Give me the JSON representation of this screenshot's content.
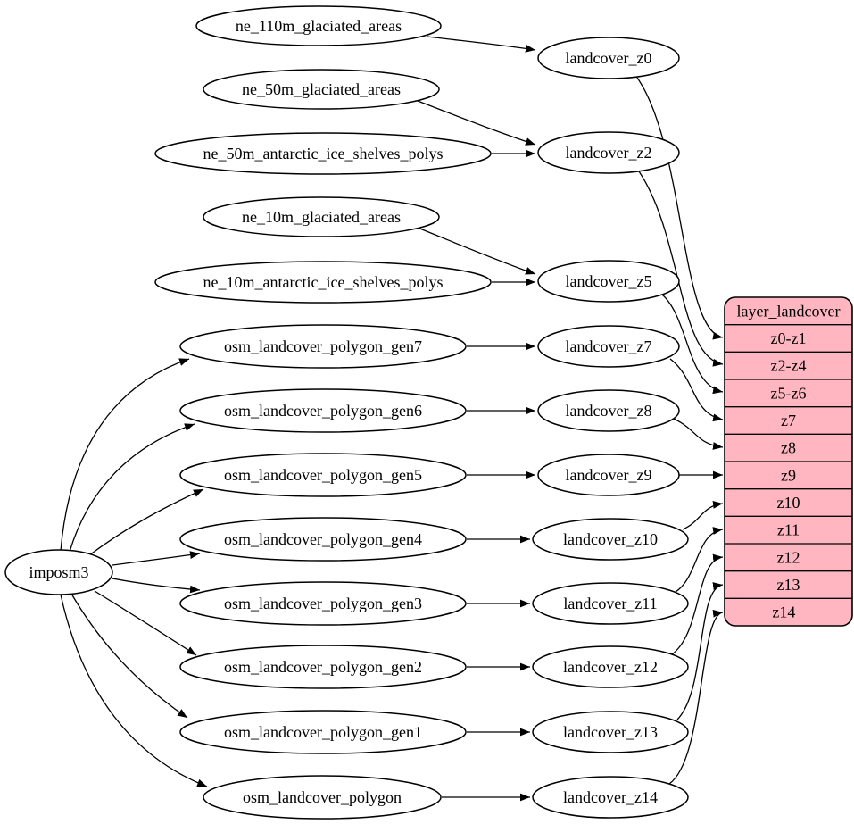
{
  "diagram": {
    "background": "#ffffff",
    "edge_color": "#000000",
    "node_fill": "#ffffff",
    "node_stroke": "#000000",
    "nodes": [
      {
        "id": "imposm3",
        "label": "imposm3"
      },
      {
        "id": "ne_110m_glaciated_areas",
        "label": "ne_110m_glaciated_areas"
      },
      {
        "id": "ne_50m_glaciated_areas",
        "label": "ne_50m_glaciated_areas"
      },
      {
        "id": "ne_50m_antarctic_ice_shelves_polys",
        "label": "ne_50m_antarctic_ice_shelves_polys"
      },
      {
        "id": "ne_10m_glaciated_areas",
        "label": "ne_10m_glaciated_areas"
      },
      {
        "id": "ne_10m_antarctic_ice_shelves_polys",
        "label": "ne_10m_antarctic_ice_shelves_polys"
      },
      {
        "id": "osm_landcover_polygon_gen7",
        "label": "osm_landcover_polygon_gen7"
      },
      {
        "id": "osm_landcover_polygon_gen6",
        "label": "osm_landcover_polygon_gen6"
      },
      {
        "id": "osm_landcover_polygon_gen5",
        "label": "osm_landcover_polygon_gen5"
      },
      {
        "id": "osm_landcover_polygon_gen4",
        "label": "osm_landcover_polygon_gen4"
      },
      {
        "id": "osm_landcover_polygon_gen3",
        "label": "osm_landcover_polygon_gen3"
      },
      {
        "id": "osm_landcover_polygon_gen2",
        "label": "osm_landcover_polygon_gen2"
      },
      {
        "id": "osm_landcover_polygon_gen1",
        "label": "osm_landcover_polygon_gen1"
      },
      {
        "id": "osm_landcover_polygon",
        "label": "osm_landcover_polygon"
      },
      {
        "id": "landcover_z0",
        "label": "landcover_z0"
      },
      {
        "id": "landcover_z2",
        "label": "landcover_z2"
      },
      {
        "id": "landcover_z5",
        "label": "landcover_z5"
      },
      {
        "id": "landcover_z7",
        "label": "landcover_z7"
      },
      {
        "id": "landcover_z8",
        "label": "landcover_z8"
      },
      {
        "id": "landcover_z9",
        "label": "landcover_z9"
      },
      {
        "id": "landcover_z10",
        "label": "landcover_z10"
      },
      {
        "id": "landcover_z11",
        "label": "landcover_z11"
      },
      {
        "id": "landcover_z12",
        "label": "landcover_z12"
      },
      {
        "id": "landcover_z13",
        "label": "landcover_z13"
      },
      {
        "id": "landcover_z14",
        "label": "landcover_z14"
      }
    ],
    "table": {
      "title": "layer_landcover",
      "fill": "#ffb6c1",
      "stroke": "#000000",
      "rows": [
        "z0-z1",
        "z2-z4",
        "z5-z6",
        "z7",
        "z8",
        "z9",
        "z10",
        "z11",
        "z12",
        "z13",
        "z14+"
      ]
    },
    "edges": [
      {
        "from": "imposm3",
        "to": "osm_landcover_polygon_gen7"
      },
      {
        "from": "imposm3",
        "to": "osm_landcover_polygon_gen6"
      },
      {
        "from": "imposm3",
        "to": "osm_landcover_polygon_gen5"
      },
      {
        "from": "imposm3",
        "to": "osm_landcover_polygon_gen4"
      },
      {
        "from": "imposm3",
        "to": "osm_landcover_polygon_gen3"
      },
      {
        "from": "imposm3",
        "to": "osm_landcover_polygon_gen2"
      },
      {
        "from": "imposm3",
        "to": "osm_landcover_polygon_gen1"
      },
      {
        "from": "imposm3",
        "to": "osm_landcover_polygon"
      },
      {
        "from": "ne_110m_glaciated_areas",
        "to": "landcover_z0"
      },
      {
        "from": "ne_50m_glaciated_areas",
        "to": "landcover_z2"
      },
      {
        "from": "ne_50m_antarctic_ice_shelves_polys",
        "to": "landcover_z2"
      },
      {
        "from": "ne_10m_glaciated_areas",
        "to": "landcover_z5"
      },
      {
        "from": "ne_10m_antarctic_ice_shelves_polys",
        "to": "landcover_z5"
      },
      {
        "from": "osm_landcover_polygon_gen7",
        "to": "landcover_z7"
      },
      {
        "from": "osm_landcover_polygon_gen6",
        "to": "landcover_z8"
      },
      {
        "from": "osm_landcover_polygon_gen5",
        "to": "landcover_z9"
      },
      {
        "from": "osm_landcover_polygon_gen4",
        "to": "landcover_z10"
      },
      {
        "from": "osm_landcover_polygon_gen3",
        "to": "landcover_z11"
      },
      {
        "from": "osm_landcover_polygon_gen2",
        "to": "landcover_z12"
      },
      {
        "from": "osm_landcover_polygon_gen1",
        "to": "landcover_z13"
      },
      {
        "from": "osm_landcover_polygon",
        "to": "landcover_z14"
      },
      {
        "from": "landcover_z0",
        "to": "layer_landcover:z0-z1"
      },
      {
        "from": "landcover_z2",
        "to": "layer_landcover:z2-z4"
      },
      {
        "from": "landcover_z5",
        "to": "layer_landcover:z5-z6"
      },
      {
        "from": "landcover_z7",
        "to": "layer_landcover:z7"
      },
      {
        "from": "landcover_z8",
        "to": "layer_landcover:z8"
      },
      {
        "from": "landcover_z9",
        "to": "layer_landcover:z9"
      },
      {
        "from": "landcover_z10",
        "to": "layer_landcover:z10"
      },
      {
        "from": "landcover_z11",
        "to": "layer_landcover:z11"
      },
      {
        "from": "landcover_z12",
        "to": "layer_landcover:z12"
      },
      {
        "from": "landcover_z13",
        "to": "layer_landcover:z13"
      },
      {
        "from": "landcover_z14",
        "to": "layer_landcover:z14+"
      }
    ]
  }
}
